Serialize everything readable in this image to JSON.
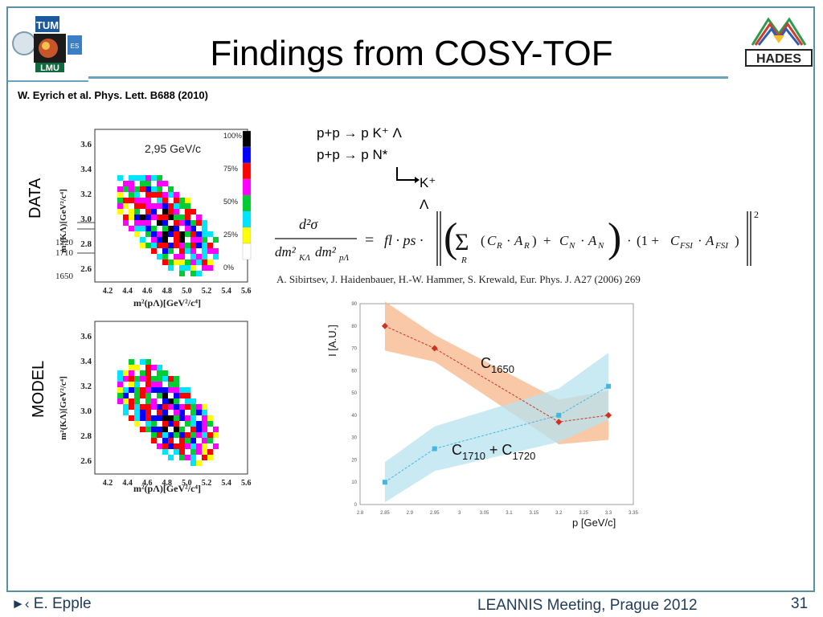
{
  "slide": {
    "title": "Findings from COSY-TOF",
    "citation": "W. Eyrich et al. Phys. Lett. B688 (2010)",
    "footer_author": "E. Epple",
    "footer_event": "LEANNIS Meeting, Prague 2012",
    "page_number": "31"
  },
  "logos": {
    "left_top": "TUM",
    "left_bottom": "LMU",
    "left_small": "ES",
    "right": "HADES"
  },
  "reactions": {
    "line1": "p+p → p K⁺ Λ",
    "line2": "p+p → p N*",
    "line3": "K⁺ Λ"
  },
  "formula": {
    "reference": "A. Sibirtsev, J. Haidenbauer, H.-W. Hammer, S. Krewald, Eur. Phys. J. A27 (2006) 269"
  },
  "dalitz": {
    "data_label": "DATA",
    "model_label": "MODEL",
    "energy": "2,95 GeV/c",
    "ylabel": "m²(KΛ)[GeV²/c⁴]",
    "xlabel": "m²(pΛ)[GeV²/c⁴]",
    "yticks": [
      "3.6",
      "3.4",
      "3.2",
      "3.0",
      "2.8",
      "2.6"
    ],
    "xticks": [
      "4.2",
      "4.4",
      "4.6",
      "4.8",
      "5.0",
      "5.2",
      "5.4",
      "5.6"
    ],
    "markers": [
      "1720",
      "1710",
      "1650"
    ],
    "scale": [
      "100%",
      "75%",
      "50%",
      "25%",
      "0%"
    ]
  },
  "chart_data": {
    "type": "line",
    "xlabel": "p [GeV/c]",
    "ylabel": "I [A.U.]",
    "xlim": [
      2.8,
      3.35
    ],
    "ylim": [
      0,
      90
    ],
    "xticks": [
      "2.8",
      "2.85",
      "2.9",
      "2.95",
      "3",
      "3.05",
      "3.1",
      "3.15",
      "3.2",
      "3.25",
      "3.3",
      "3.35"
    ],
    "yticks": [
      "0",
      "10",
      "20",
      "30",
      "40",
      "50",
      "60",
      "70",
      "80",
      "90"
    ],
    "series": [
      {
        "name": "C1650",
        "color": "#cc3322",
        "band": "#f7b58a",
        "x": [
          2.85,
          2.95,
          3.2,
          3.3
        ],
        "values": [
          80,
          70,
          37,
          40
        ]
      },
      {
        "name": "C1710 + C1720",
        "color": "#44b7e0",
        "band": "#b7e2ef",
        "x": [
          2.85,
          2.95,
          3.2,
          3.3
        ],
        "values": [
          10,
          25,
          40,
          53
        ]
      }
    ],
    "labels": {
      "c1650": "C",
      "c1650_sub": "1650",
      "c17_a": "C",
      "c17_a_sub": "1710",
      "plus": " + C",
      "c17_b_sub": "1720"
    }
  }
}
